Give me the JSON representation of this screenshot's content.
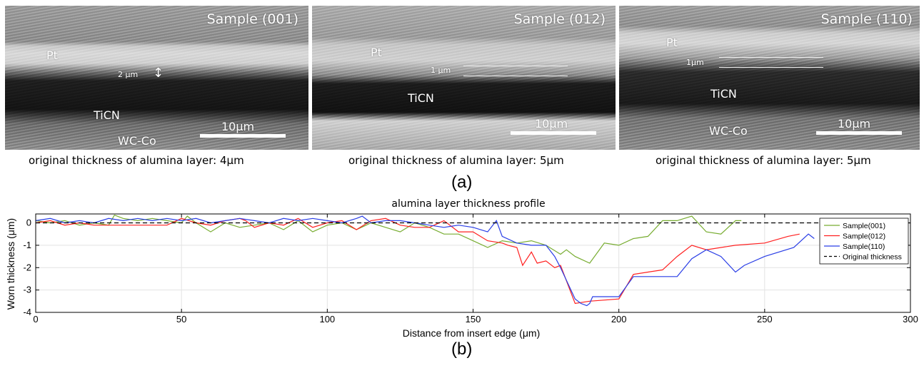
{
  "figure": {
    "panel_a_label": "(a)",
    "panel_b_label": "(b)",
    "images": [
      {
        "title": "Sample (001)",
        "layers": [
          "Pt",
          "TiCN",
          "WC-Co"
        ],
        "thickness_label": "2 μm",
        "scale_label": "10μm",
        "caption": "original thickness of alumina layer: 4μm"
      },
      {
        "title": "Sample (012)",
        "layers": [
          "Pt",
          "TiCN"
        ],
        "thickness_label": "1 μm",
        "scale_label": "10μm",
        "caption": "original thickness of alumina layer: 5μm"
      },
      {
        "title": "Sample (110)",
        "layers": [
          "Pt",
          "TiCN",
          "WC-Co"
        ],
        "thickness_label": "1μm",
        "scale_label": "10μm",
        "caption": "original thickness of alumina layer: 5μm"
      }
    ]
  },
  "chart_data": {
    "type": "line",
    "title": "alumina layer thickness profile",
    "xlabel": "Distance from insert edge (μm)",
    "ylabel": "Worn thickness (μm)",
    "xlim": [
      0,
      300
    ],
    "ylim": [
      -4,
      0.4
    ],
    "xticks": [
      0,
      50,
      100,
      150,
      200,
      250,
      300
    ],
    "yticks": [
      0,
      -1,
      -2,
      -3,
      -4
    ],
    "grid": true,
    "legend_position": "top-right",
    "series": [
      {
        "name": "Sample(001)",
        "color": "#77ac30",
        "x": [
          0,
          5,
          10,
          15,
          20,
          25,
          27,
          30,
          35,
          40,
          45,
          50,
          52,
          55,
          60,
          65,
          70,
          75,
          80,
          85,
          90,
          95,
          100,
          105,
          110,
          115,
          120,
          125,
          130,
          135,
          140,
          145,
          150,
          155,
          160,
          165,
          170,
          175,
          180,
          182,
          185,
          190,
          195,
          200,
          205,
          210,
          215,
          220,
          225,
          230,
          235,
          240,
          242
        ],
        "y": [
          0.1,
          0.0,
          0.1,
          -0.1,
          0.0,
          -0.1,
          0.35,
          0.2,
          0.1,
          0.2,
          0.1,
          0.0,
          0.3,
          0.0,
          -0.4,
          0.0,
          -0.2,
          -0.1,
          0.0,
          -0.3,
          0.1,
          -0.4,
          -0.1,
          0.0,
          -0.3,
          0.0,
          -0.2,
          -0.4,
          0.0,
          -0.2,
          -0.5,
          -0.5,
          -0.8,
          -1.1,
          -0.8,
          -0.9,
          -0.8,
          -1.0,
          -1.4,
          -1.2,
          -1.5,
          -1.8,
          -0.9,
          -1.0,
          -0.7,
          -0.6,
          0.1,
          0.1,
          0.3,
          -0.4,
          -0.5,
          0.1,
          0.1
        ]
      },
      {
        "name": "Sample(012)",
        "color": "#ff2020",
        "x": [
          0,
          5,
          10,
          15,
          20,
          25,
          30,
          35,
          40,
          45,
          50,
          55,
          60,
          65,
          70,
          72,
          75,
          80,
          85,
          90,
          95,
          100,
          105,
          110,
          115,
          120,
          125,
          130,
          135,
          140,
          145,
          150,
          155,
          160,
          162,
          165,
          167,
          170,
          172,
          175,
          178,
          180,
          185,
          190,
          200,
          205,
          210,
          215,
          220,
          225,
          230,
          240,
          250,
          258,
          262
        ],
        "y": [
          0.0,
          0.1,
          -0.1,
          0.0,
          -0.1,
          -0.1,
          -0.1,
          -0.1,
          -0.1,
          -0.1,
          0.2,
          0.0,
          -0.1,
          0.1,
          0.2,
          0.1,
          -0.2,
          0.0,
          -0.1,
          0.2,
          -0.2,
          0.0,
          0.1,
          -0.3,
          0.1,
          0.2,
          -0.1,
          -0.2,
          -0.2,
          0.1,
          -0.4,
          -0.4,
          -0.8,
          -0.9,
          -1.0,
          -1.1,
          -1.9,
          -1.3,
          -1.8,
          -1.7,
          -2.0,
          -1.9,
          -3.6,
          -3.5,
          -3.4,
          -2.3,
          -2.2,
          -2.1,
          -1.5,
          -1.0,
          -1.2,
          -1.0,
          -0.9,
          -0.6,
          -0.5
        ]
      },
      {
        "name": "Sample(110)",
        "color": "#2a3ee6",
        "x": [
          0,
          5,
          10,
          15,
          20,
          25,
          30,
          35,
          40,
          45,
          50,
          55,
          60,
          65,
          70,
          75,
          80,
          85,
          90,
          95,
          100,
          105,
          110,
          112,
          115,
          120,
          125,
          130,
          135,
          140,
          145,
          150,
          155,
          158,
          160,
          165,
          170,
          175,
          178,
          180,
          185,
          187,
          189,
          190,
          191,
          195,
          200,
          205,
          210,
          220,
          225,
          230,
          235,
          240,
          243,
          250,
          260,
          265,
          267
        ],
        "y": [
          0.1,
          0.2,
          0.0,
          0.1,
          0.0,
          0.2,
          0.1,
          0.2,
          0.1,
          0.2,
          0.1,
          0.2,
          0.0,
          0.1,
          0.2,
          0.1,
          0.0,
          0.2,
          0.1,
          0.2,
          0.1,
          0.0,
          0.2,
          0.3,
          0.0,
          0.1,
          0.1,
          0.0,
          -0.1,
          -0.2,
          -0.1,
          -0.2,
          -0.4,
          0.1,
          -0.6,
          -0.9,
          -1.0,
          -1.0,
          -1.5,
          -2.0,
          -3.4,
          -3.6,
          -3.7,
          -3.6,
          -3.3,
          -3.3,
          -3.3,
          -2.4,
          -2.4,
          -2.4,
          -1.6,
          -1.2,
          -1.5,
          -2.2,
          -1.9,
          -1.5,
          -1.1,
          -0.5,
          -0.7
        ]
      },
      {
        "name": "Original thickness",
        "color": "#000000",
        "dashed": true,
        "x": [
          0,
          300
        ],
        "y": [
          0,
          0
        ]
      }
    ]
  }
}
